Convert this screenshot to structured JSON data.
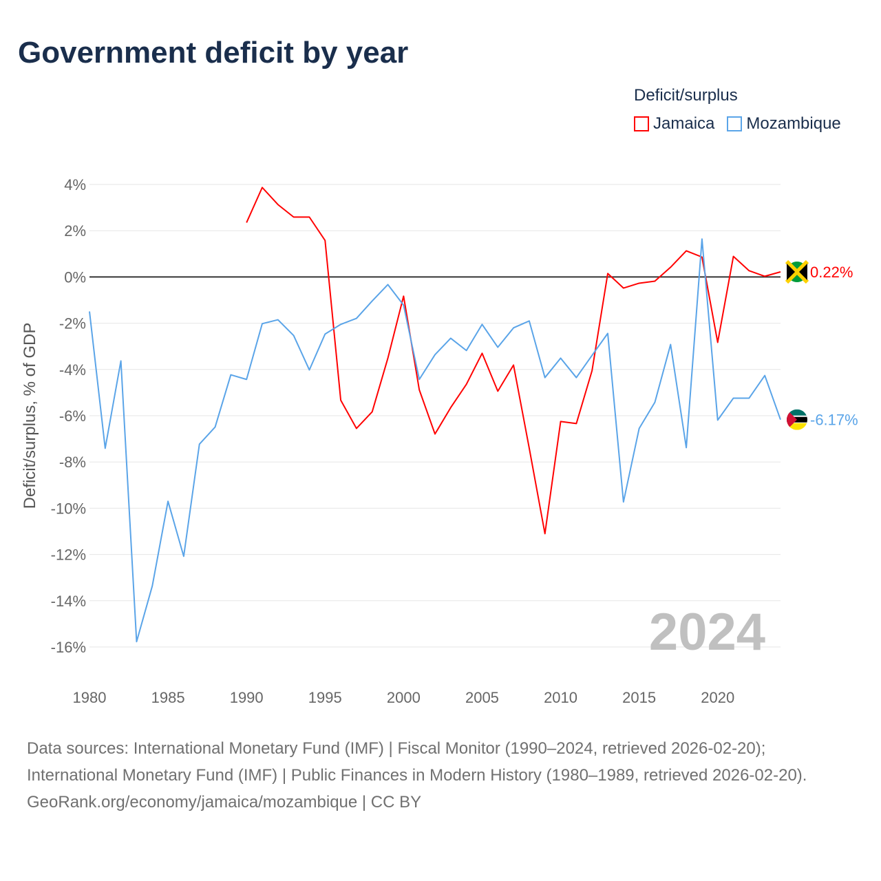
{
  "title": "Government deficit by year",
  "legend": {
    "title": "Deficit/surplus",
    "items": [
      {
        "label": "Jamaica",
        "color": "#ff0000"
      },
      {
        "label": "Mozambique",
        "color": "#5aa4e8"
      }
    ]
  },
  "chart_data": {
    "type": "line",
    "title": "Government deficit by year",
    "xlabel": "",
    "ylabel": "Deficit/surplus, % of GDP",
    "xlim": [
      1980,
      2024
    ],
    "ylim": [
      -16,
      4
    ],
    "xticks": [
      "1980",
      "1985",
      "1990",
      "1995",
      "2000",
      "2005",
      "2010",
      "2015",
      "2020"
    ],
    "yticks": [
      "4%",
      "2%",
      "0%",
      "-2%",
      "-4%",
      "-6%",
      "-8%",
      "-10%",
      "-12%",
      "-14%",
      "-16%"
    ],
    "grid": true,
    "year_watermark": "2024",
    "series": [
      {
        "name": "Jamaica",
        "color": "#ff0000",
        "end_label": "0.22%",
        "x": [
          1990,
          1991,
          1992,
          1993,
          1994,
          1995,
          1996,
          1997,
          1998,
          1999,
          2000,
          2001,
          2002,
          2003,
          2004,
          2005,
          2006,
          2007,
          2008,
          2009,
          2010,
          2011,
          2012,
          2013,
          2014,
          2015,
          2016,
          2017,
          2018,
          2019,
          2020,
          2021,
          2022,
          2023,
          2024
        ],
        "values": [
          2.35,
          3.87,
          3.13,
          2.59,
          2.59,
          1.58,
          -5.33,
          -6.55,
          -5.83,
          -3.51,
          -0.83,
          -4.88,
          -6.79,
          -5.65,
          -4.64,
          -3.3,
          -4.94,
          -3.81,
          -7.4,
          -11.1,
          -6.25,
          -6.34,
          -4.05,
          0.15,
          -0.48,
          -0.27,
          -0.18,
          0.42,
          1.13,
          0.86,
          -2.83,
          0.89,
          0.27,
          0.03,
          0.22
        ]
      },
      {
        "name": "Mozambique",
        "color": "#5aa4e8",
        "end_label": "-6.17%",
        "x": [
          1980,
          1981,
          1982,
          1983,
          1984,
          1985,
          1986,
          1987,
          1988,
          1989,
          1990,
          1991,
          1992,
          1993,
          1994,
          1995,
          1996,
          1997,
          1998,
          1999,
          2000,
          2001,
          2002,
          2003,
          2004,
          2005,
          2006,
          2007,
          2008,
          2009,
          2010,
          2011,
          2012,
          2013,
          2014,
          2015,
          2016,
          2017,
          2018,
          2019,
          2020,
          2021,
          2022,
          2023,
          2024
        ],
        "values": [
          -1.49,
          -7.41,
          -3.63,
          -15.77,
          -13.36,
          -9.7,
          -12.08,
          -7.23,
          -6.49,
          -4.23,
          -4.43,
          -2.02,
          -1.85,
          -2.53,
          -4.02,
          -2.47,
          -2.05,
          -1.79,
          -1.04,
          -0.33,
          -1.22,
          -4.43,
          -3.36,
          -2.65,
          -3.18,
          -2.05,
          -3.04,
          -2.2,
          -1.9,
          -4.35,
          -3.51,
          -4.35,
          -3.39,
          -2.44,
          -9.73,
          -6.55,
          -5.42,
          -2.92,
          -7.38,
          1.64,
          -6.19,
          -5.24,
          -5.24,
          -4.26,
          -6.17
        ]
      }
    ]
  },
  "footer": {
    "sources": "Data sources: International Monetary Fund (IMF) | Fiscal Monitor (1990–2024, retrieved 2026-02-20); International Monetary Fund (IMF) | Public Finances in Modern History (1980–1989, retrieved 2026-02-20).",
    "credit": "GeoRank.org/economy/jamaica/mozambique | CC BY"
  }
}
